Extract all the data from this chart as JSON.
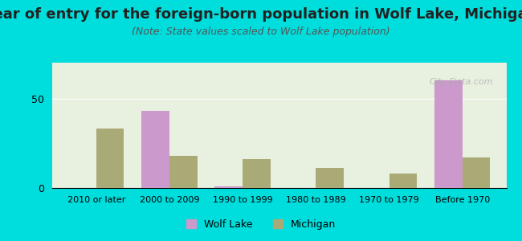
{
  "title": "Year of entry for the foreign-born population in Wolf Lake, Michigan",
  "subtitle": "(Note: State values scaled to Wolf Lake population)",
  "categories": [
    "2010 or later",
    "2000 to 2009",
    "1990 to 1999",
    "1980 to 1989",
    "1970 to 1979",
    "Before 1970"
  ],
  "wolf_lake": [
    0,
    43,
    1,
    0,
    0,
    60
  ],
  "michigan": [
    33,
    18,
    16,
    11,
    8,
    17
  ],
  "wolf_lake_color": "#cc99cc",
  "michigan_color": "#aaaa77",
  "background_outer": "#00dddd",
  "background_inner": "#e8f0e0",
  "title_fontsize": 13,
  "subtitle_fontsize": 9,
  "ylabel_tick": 50,
  "ylim": [
    0,
    70
  ],
  "bar_width": 0.38,
  "watermark": "City-Data.com"
}
